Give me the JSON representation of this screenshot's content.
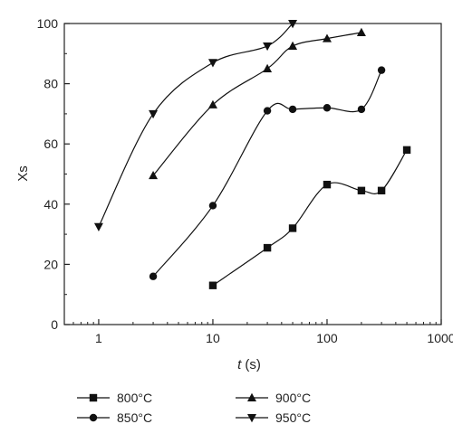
{
  "chart_data": {
    "type": "scatter",
    "xscale": "log",
    "xlim": [
      0.5,
      1000
    ],
    "ylim": [
      0,
      100
    ],
    "xticks": [
      1,
      10,
      100,
      1000
    ],
    "xtick_labels": [
      "1",
      "10",
      "100",
      "1000"
    ],
    "yticks": [
      0,
      20,
      40,
      60,
      80,
      100
    ],
    "ytick_labels": [
      "0",
      "20",
      "40",
      "60",
      "80",
      "100"
    ],
    "xlabel_italic": "t",
    "xlabel_unit": "(s)",
    "ylabel": "Xs",
    "grid": false,
    "legend_position": "bottom",
    "series": [
      {
        "name": "800°C",
        "marker": "square",
        "x": [
          10,
          30,
          50,
          100,
          200,
          300,
          500
        ],
        "y": [
          13,
          25.5,
          32,
          46.5,
          44.5,
          44.5,
          58
        ]
      },
      {
        "name": "850°C",
        "marker": "circle",
        "x": [
          3,
          10,
          30,
          50,
          100,
          200,
          300
        ],
        "y": [
          16,
          39.5,
          71,
          71.5,
          72,
          71.5,
          84.5
        ]
      },
      {
        "name": "900°C",
        "marker": "triangle-up",
        "x": [
          3,
          10,
          30,
          50,
          100,
          200
        ],
        "y": [
          49.5,
          73,
          85,
          92.5,
          95,
          97
        ]
      },
      {
        "name": "950°C",
        "marker": "triangle-down",
        "x": [
          1,
          3,
          10,
          30,
          50
        ],
        "y": [
          32.5,
          70,
          87,
          92.5,
          100
        ]
      }
    ]
  }
}
